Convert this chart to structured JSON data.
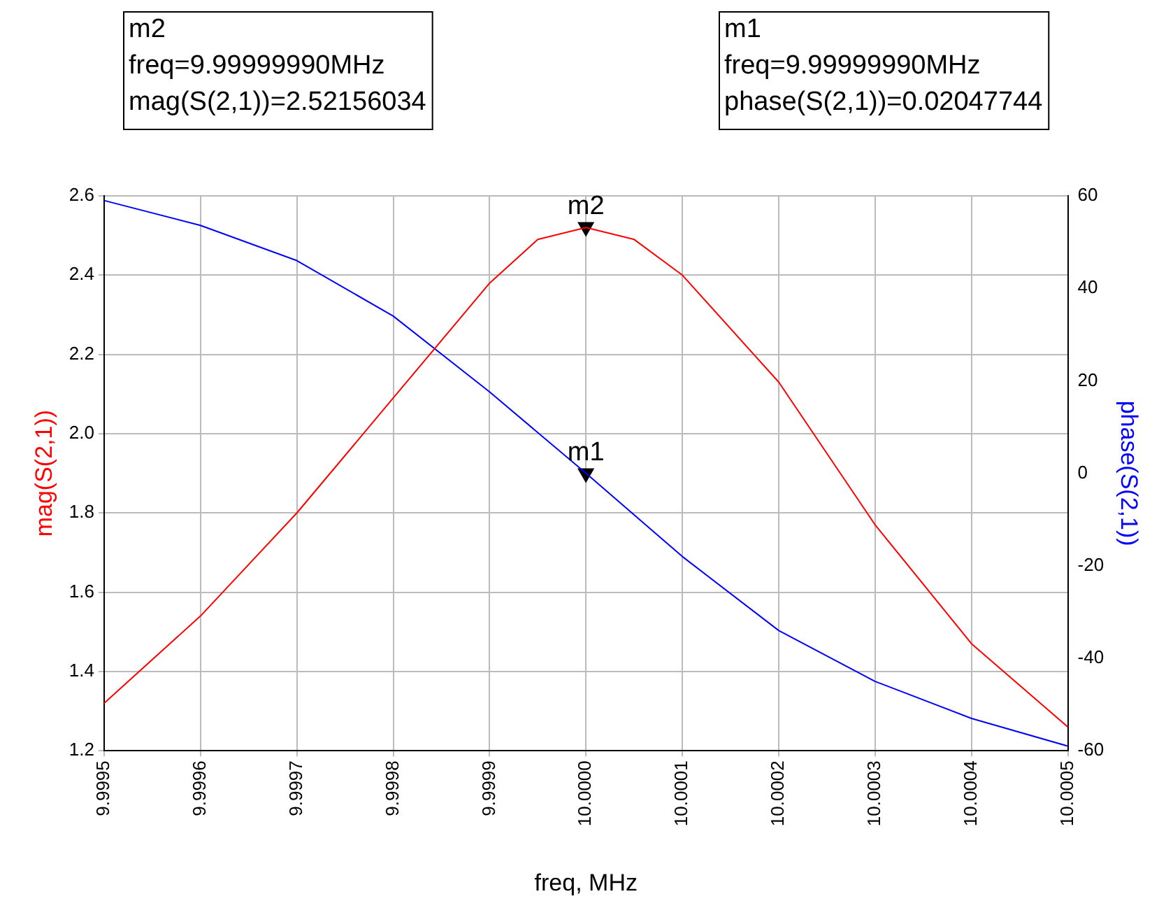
{
  "chart_data": {
    "type": "line",
    "xlabel": "freq, MHz",
    "ylabel": "mag(S(2,1))",
    "y2label": "phase(S(2,1))",
    "annotations": [
      "m2\nfreq=9.99999990MHz\nmag(S(2,1))=2.52156034",
      "m1\nfreq=9.99999990MHz\nphase(S(2,1))=0.02047744"
    ],
    "xlim": [
      9.9995,
      10.0005
    ],
    "xticks": [
      {
        "value": 9.9995,
        "label": "9.9995"
      },
      {
        "value": 9.9996,
        "label": "9.9996"
      },
      {
        "value": 9.9997,
        "label": "9.9997"
      },
      {
        "value": 9.9998,
        "label": "9.9998"
      },
      {
        "value": 9.9999,
        "label": "9.9999"
      },
      {
        "value": 10,
        "label": "10.0000"
      },
      {
        "value": 10.0001,
        "label": "10.0001"
      },
      {
        "value": 10.0002,
        "label": "10.0002"
      },
      {
        "value": 10.0003,
        "label": "10.0003"
      },
      {
        "value": 10.0004,
        "label": "10.0004"
      },
      {
        "value": 10.0005,
        "label": "10.0005"
      }
    ],
    "ylim": [
      1.2,
      2.6
    ],
    "yticks": [
      {
        "value": 1.2,
        "label": "1.2"
      },
      {
        "value": 1.4,
        "label": "1.4"
      },
      {
        "value": 1.6,
        "label": "1.6"
      },
      {
        "value": 1.8,
        "label": "1.8"
      },
      {
        "value": 2.0,
        "label": "2.0"
      },
      {
        "value": 2.2,
        "label": "2.2"
      },
      {
        "value": 2.4,
        "label": "2.4"
      },
      {
        "value": 2.6,
        "label": "2.6"
      }
    ],
    "y2lim": [
      -60,
      60
    ],
    "y2ticks": [
      -60,
      -40,
      -20,
      0,
      20,
      40,
      60
    ],
    "grid": true,
    "legend": false,
    "series": [
      {
        "type": "line",
        "color": "#ff0000",
        "x": [
          9.9995,
          9.9996,
          9.9997,
          9.9998,
          9.9999,
          9.99995,
          10,
          10.00005,
          10.0001,
          10.0002,
          10.0003,
          10.0004,
          10.0005
        ],
        "values": [
          1.32,
          1.54,
          1.8,
          2.09,
          2.38,
          2.49,
          2.52,
          2.49,
          2.4,
          2.13,
          1.77,
          1.47,
          1.26
        ]
      },
      {
        "type": "line",
        "color": "#0000ff",
        "axis": "y2",
        "x": [
          9.9995,
          9.9996,
          9.9997,
          9.9998,
          9.9999,
          10,
          10.0001,
          10.0002,
          10.0003,
          10.0004,
          10.0005
        ],
        "values": [
          59,
          53.6,
          46,
          34,
          17.6,
          0,
          -18,
          -34,
          -45,
          -53,
          -59
        ]
      },
      {
        "type": "scatter",
        "name": "m2",
        "color": "#000000",
        "marker": "triangle",
        "x": [
          9.9999999
        ],
        "values": [
          2.52156034
        ]
      },
      {
        "type": "scatter",
        "name": "m1",
        "color": "#000000",
        "marker": "triangle",
        "axis": "y2",
        "x": [
          9.9999999
        ],
        "values": [
          0.02047744
        ]
      }
    ]
  }
}
